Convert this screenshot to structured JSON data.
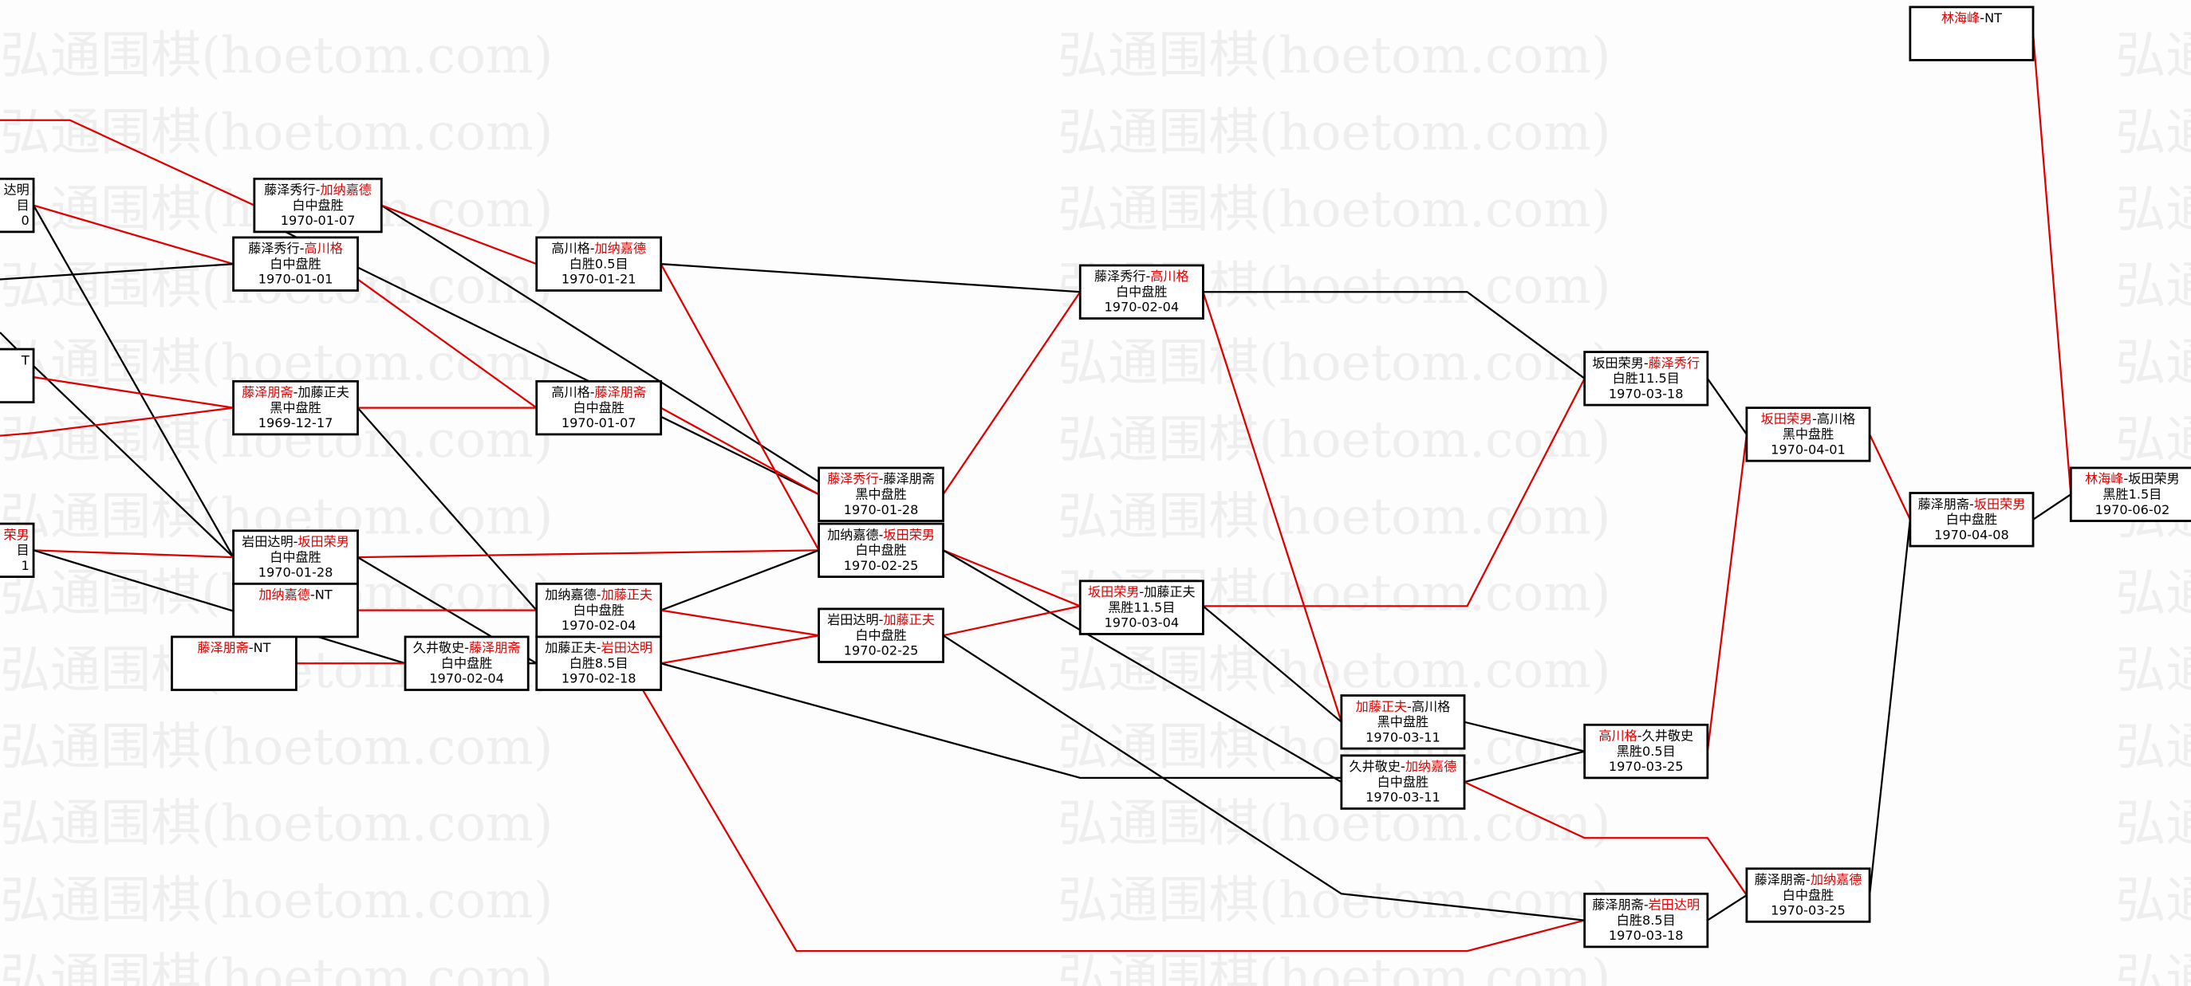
{
  "watermark": "弘通围棋(hoetom.com)",
  "colors": {
    "winner": "#e00000",
    "line_winner": "#e00000",
    "line_loser": "#000000"
  },
  "clipped_fragments": [
    {
      "lines": [
        "达明",
        "目",
        "0"
      ]
    },
    {
      "lines": [
        "T"
      ]
    },
    {
      "lines": [
        "荣男",
        "目",
        "1"
      ],
      "first_red": true
    }
  ],
  "games": [
    {
      "p1": "藤泽秀行",
      "p2": "加纳嘉德",
      "red": 2,
      "result": "白中盘胜",
      "date": "1970-01-07"
    },
    {
      "p1": "藤泽秀行",
      "p2": "高川格",
      "red": 2,
      "result": "白中盘胜",
      "date": "1970-01-01"
    },
    {
      "p1": "藤泽朋斋",
      "p2": "加藤正夫",
      "red": 1,
      "result": "黑中盘胜",
      "date": "1969-12-17"
    },
    {
      "p1": "岩田达明",
      "p2": "坂田荣男",
      "red": 2,
      "result": "白中盘胜",
      "date": "1970-01-28"
    },
    {
      "p1": "加纳嘉德",
      "p2": "NT",
      "red": 1,
      "result": "",
      "date": ""
    },
    {
      "p1": "藤泽朋斋",
      "p2": "NT",
      "red": 1,
      "result": "",
      "date": ""
    },
    {
      "p1": "高川格",
      "p2": "加纳嘉德",
      "red": 2,
      "result": "白胜0.5目",
      "date": "1970-01-21"
    },
    {
      "p1": "高川格",
      "p2": "藤泽朋斋",
      "red": 2,
      "result": "白中盘胜",
      "date": "1970-01-07"
    },
    {
      "p1": "加纳嘉德",
      "p2": "加藤正夫",
      "red": 2,
      "result": "白中盘胜",
      "date": "1970-02-04"
    },
    {
      "p1": "久井敬史",
      "p2": "藤泽朋斋",
      "red": 2,
      "result": "白中盘胜",
      "date": "1970-02-04"
    },
    {
      "p1": "加藤正夫",
      "p2": "岩田达明",
      "red": 2,
      "result": "白胜8.5目",
      "date": "1970-02-18"
    },
    {
      "p1": "藤泽秀行",
      "p2": "藤泽朋斋",
      "red": 1,
      "result": "黑中盘胜",
      "date": "1970-01-28"
    },
    {
      "p1": "加纳嘉德",
      "p2": "坂田荣男",
      "red": 2,
      "result": "白中盘胜",
      "date": "1970-02-25"
    },
    {
      "p1": "岩田达明",
      "p2": "加藤正夫",
      "red": 2,
      "result": "白中盘胜",
      "date": "1970-02-25"
    },
    {
      "p1": "藤泽秀行",
      "p2": "高川格",
      "red": 2,
      "result": "白中盘胜",
      "date": "1970-02-04"
    },
    {
      "p1": "坂田荣男",
      "p2": "加藤正夫",
      "red": 1,
      "result": "黑胜11.5目",
      "date": "1970-03-04"
    },
    {
      "p1": "加藤正夫",
      "p2": "高川格",
      "red": 1,
      "result": "黑中盘胜",
      "date": "1970-03-11"
    },
    {
      "p1": "久井敬史",
      "p2": "加纳嘉德",
      "red": 2,
      "result": "白中盘胜",
      "date": "1970-03-11"
    },
    {
      "p1": "坂田荣男",
      "p2": "藤泽秀行",
      "red": 2,
      "result": "白胜11.5目",
      "date": "1970-03-18"
    },
    {
      "p1": "高川格",
      "p2": "久井敬史",
      "red": 1,
      "result": "黑胜0.5目",
      "date": "1970-03-25"
    },
    {
      "p1": "藤泽朋斋",
      "p2": "岩田达明",
      "red": 2,
      "result": "白胜8.5目",
      "date": "1970-03-18"
    },
    {
      "p1": "坂田荣男",
      "p2": "高川格",
      "red": 1,
      "result": "黑中盘胜",
      "date": "1970-04-01"
    },
    {
      "p1": "藤泽朋斋",
      "p2": "加纳嘉德",
      "red": 2,
      "result": "白中盘胜",
      "date": "1970-03-25"
    },
    {
      "p1": "藤泽朋斋",
      "p2": "坂田荣男",
      "red": 2,
      "result": "白中盘胜",
      "date": "1970-04-08"
    },
    {
      "p1": "林海峰",
      "p2": "NT",
      "red": 1,
      "result": "",
      "date": ""
    },
    {
      "p1": "林海峰",
      "p2": "坂田荣男",
      "red": 1,
      "result": "黑胜1.5目",
      "date": "1970-06-02"
    }
  ]
}
